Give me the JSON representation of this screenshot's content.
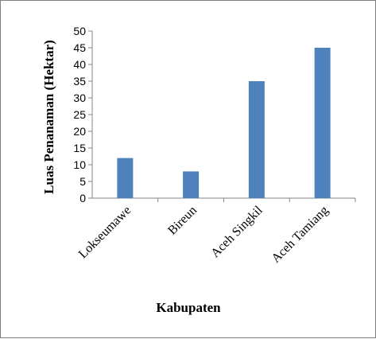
{
  "chart_data": {
    "type": "bar",
    "title": "",
    "xlabel": "Kabupaten",
    "ylabel": "Luas Penanaman (Hektar)",
    "categories": [
      "Lokseumawe",
      "Bireun",
      "Aceh Singkil",
      "Aceh Tamiang"
    ],
    "values": [
      12,
      8,
      35,
      45
    ],
    "ylim": [
      0,
      50
    ],
    "yticks": [
      "0",
      "5",
      "10",
      "15",
      "20",
      "25",
      "30",
      "35",
      "40",
      "45",
      "50"
    ],
    "grid": false,
    "legend": "none",
    "bar_color": "#4f81bd",
    "axis_color": "#868686"
  }
}
